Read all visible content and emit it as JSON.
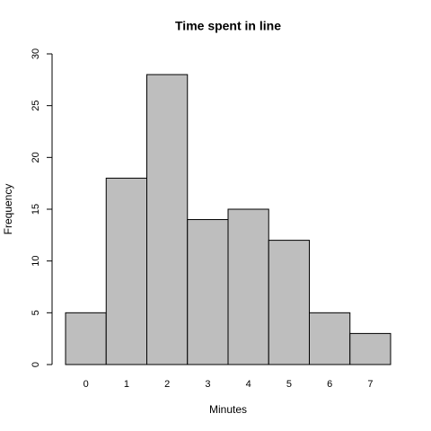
{
  "chart_data": {
    "type": "bar",
    "title": "Time spent in line",
    "x_label": "Minutes",
    "y_label": "Frequency",
    "categories": [
      "0",
      "1",
      "2",
      "3",
      "4",
      "5",
      "6",
      "7"
    ],
    "values": [
      5,
      18,
      28,
      14,
      15,
      12,
      5,
      3
    ],
    "color": "#bebebe",
    "ylim": [
      0,
      30
    ],
    "yticks": [
      0,
      5,
      10,
      15,
      20,
      25,
      30
    ],
    "grid": false
  }
}
